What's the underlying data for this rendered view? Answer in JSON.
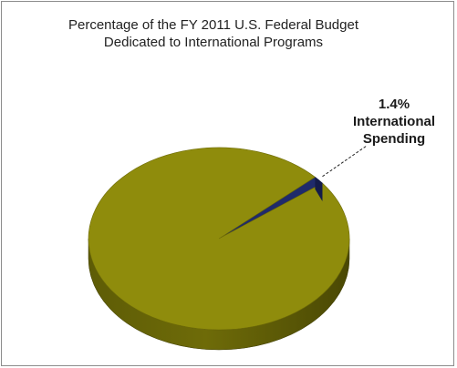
{
  "chart_data": {
    "type": "pie",
    "title": "Percentage of the FY 2011 U.S. Federal Budget",
    "subtitle": "Dedicated to International Programs",
    "slices": [
      {
        "value": 98.6,
        "color": "#8f8c0c"
      },
      {
        "value": 1.4,
        "color": "#1f2a6b"
      }
    ],
    "annotation": {
      "value_label": "1.4%",
      "line1": "International",
      "line2": "Spending"
    }
  }
}
